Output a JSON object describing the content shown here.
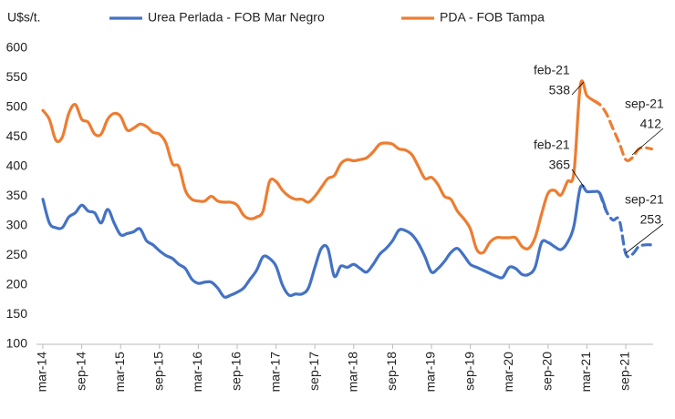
{
  "chart_data": {
    "type": "line",
    "ylabel": "U$s/t.",
    "ylim": [
      100,
      600
    ],
    "yticks": [
      100,
      150,
      200,
      250,
      300,
      350,
      400,
      450,
      500,
      550,
      600
    ],
    "categories": [
      "mar-14",
      null,
      null,
      null,
      null,
      null,
      "sep-14",
      null,
      null,
      null,
      null,
      null,
      "mar-15",
      null,
      null,
      null,
      null,
      null,
      "sep-15",
      null,
      null,
      null,
      null,
      null,
      "mar-16",
      null,
      null,
      null,
      null,
      null,
      "sep-16",
      null,
      null,
      null,
      null,
      null,
      "mar-17",
      null,
      null,
      null,
      null,
      null,
      "sep-17",
      null,
      null,
      null,
      null,
      null,
      "mar-18",
      null,
      null,
      null,
      null,
      null,
      "sep-18",
      null,
      null,
      null,
      null,
      null,
      "mar-19",
      null,
      null,
      null,
      null,
      null,
      "sep-19",
      null,
      null,
      null,
      null,
      null,
      "mar-20",
      null,
      null,
      null,
      null,
      null,
      "sep-20",
      null,
      null,
      null,
      null,
      null,
      "mar-21",
      null,
      null,
      null,
      null,
      null,
      "sep-21",
      null,
      null,
      null,
      null
    ],
    "series": [
      {
        "name": "Urea Perlada - FOB Mar Negro",
        "color": "#4472c4",
        "dashed_from": 87,
        "values": [
          345,
          305,
          297,
          297,
          315,
          322,
          335,
          325,
          322,
          305,
          328,
          305,
          285,
          287,
          290,
          295,
          275,
          268,
          258,
          250,
          245,
          235,
          228,
          210,
          203,
          205,
          205,
          195,
          180,
          183,
          188,
          195,
          210,
          225,
          248,
          245,
          232,
          200,
          183,
          185,
          185,
          195,
          230,
          262,
          262,
          215,
          232,
          230,
          235,
          228,
          222,
          235,
          252,
          262,
          275,
          293,
          292,
          285,
          270,
          248,
          222,
          228,
          240,
          255,
          262,
          250,
          235,
          230,
          225,
          220,
          215,
          213,
          230,
          228,
          218,
          218,
          230,
          272,
          272,
          265,
          260,
          272,
          300,
          365,
          358,
          358,
          355,
          325,
          310,
          310,
          253,
          252,
          265,
          268,
          268
        ]
      },
      {
        "name": "PDA - FOB Tampa",
        "color": "#ed7d31",
        "dashed_from": 86,
        "values": [
          495,
          480,
          445,
          450,
          490,
          505,
          480,
          475,
          455,
          455,
          480,
          490,
          485,
          462,
          465,
          472,
          468,
          458,
          455,
          440,
          405,
          400,
          360,
          345,
          342,
          342,
          350,
          342,
          340,
          340,
          335,
          318,
          312,
          315,
          325,
          375,
          375,
          360,
          350,
          345,
          345,
          340,
          350,
          365,
          380,
          385,
          405,
          412,
          410,
          412,
          415,
          425,
          438,
          440,
          438,
          430,
          428,
          420,
          400,
          380,
          382,
          370,
          350,
          345,
          325,
          312,
          295,
          260,
          255,
          272,
          280,
          280,
          280,
          280,
          265,
          262,
          280,
          320,
          355,
          360,
          352,
          375,
          390,
          538,
          520,
          512,
          505,
          490,
          465,
          440,
          412,
          415,
          430,
          432,
          430
        ]
      }
    ],
    "annotations": [
      {
        "label": "feb-21",
        "value": 538
      },
      {
        "label": "feb-21",
        "value": 365
      },
      {
        "label": "sep-21",
        "value": 412
      },
      {
        "label": "sep-21",
        "value": 253
      }
    ]
  }
}
